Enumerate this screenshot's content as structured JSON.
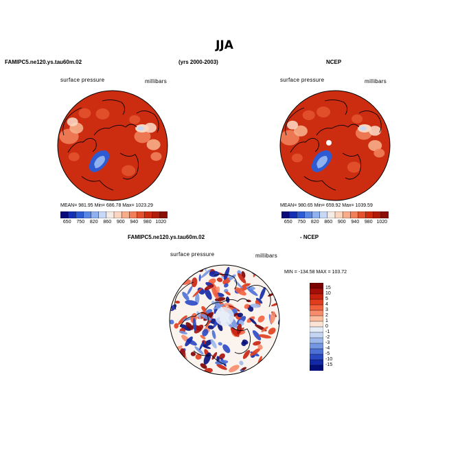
{
  "figure": {
    "title": "JJA",
    "left_header": "FAMIPC5.ne120.ys.tau60m.02",
    "center_header": "(yrs 2000-2003)",
    "right_header": "NCEP",
    "bottom_left_header": "FAMIPC5.ne120.ys.tau60m.02",
    "bottom_right_header": "- NCEP"
  },
  "chart_data": [
    {
      "type": "heatmap",
      "projection": "north-polar-stereographic",
      "title": "FAMIPC5.ne120.ys.tau60m.02",
      "variable": "surface pressure",
      "units": "millibars",
      "stats_text": "MEAN= 981.95   Min= 686.78   Max= 1023.29",
      "mean": 981.95,
      "min": 686.78,
      "max": 1023.29,
      "colorbar_levels": [
        "650",
        "750",
        "820",
        "860",
        "900",
        "940",
        "980",
        "1020"
      ],
      "colorbar_colors": [
        "#0a0a78",
        "#1630b4",
        "#2e5ad2",
        "#5a87e6",
        "#8fb1f0",
        "#c6d8f6",
        "#f4ece4",
        "#fbd5c0",
        "#f7ad8a",
        "#f07f5a",
        "#e2522e",
        "#cc2d10",
        "#b01c08",
        "#8a0e04"
      ]
    },
    {
      "type": "heatmap",
      "projection": "north-polar-stereographic",
      "title": "NCEP",
      "variable": "surface pressure",
      "units": "millibars",
      "stats_text": "MEAN= 980.65   Min= 659.92   Max= 1039.59",
      "mean": 980.65,
      "min": 659.92,
      "max": 1039.59,
      "colorbar_levels": [
        "650",
        "750",
        "820",
        "860",
        "900",
        "940",
        "980",
        "1020"
      ],
      "colorbar_colors": [
        "#0a0a78",
        "#1630b4",
        "#2e5ad2",
        "#5a87e6",
        "#8fb1f0",
        "#c6d8f6",
        "#f4ece4",
        "#fbd5c0",
        "#f7ad8a",
        "#f07f5a",
        "#e2522e",
        "#cc2d10",
        "#b01c08",
        "#8a0e04"
      ]
    },
    {
      "type": "heatmap",
      "projection": "north-polar-stereographic",
      "title": "FAMIPC5.ne120.ys.tau60m.02 - NCEP",
      "variable": "surface pressure",
      "units": "millibars",
      "stats_text": "MIN = -134.58  MAX = 103.72",
      "min": -134.58,
      "max": 103.72,
      "colorbar_levels": [
        "15",
        "10",
        "5",
        "4",
        "3",
        "2",
        "1",
        "0",
        "-1",
        "-2",
        "-3",
        "-4",
        "-5",
        "-10",
        "-15"
      ],
      "colorbar_colors": [
        "#7a0000",
        "#a40e08",
        "#c8200e",
        "#e03d1c",
        "#f2613e",
        "#f78c6c",
        "#fbbd9e",
        "#fde3d4",
        "#e4ecf8",
        "#c3d5f3",
        "#9db9ec",
        "#7596e2",
        "#4c70d6",
        "#2a48c4",
        "#1228a6",
        "#04107a"
      ]
    }
  ]
}
